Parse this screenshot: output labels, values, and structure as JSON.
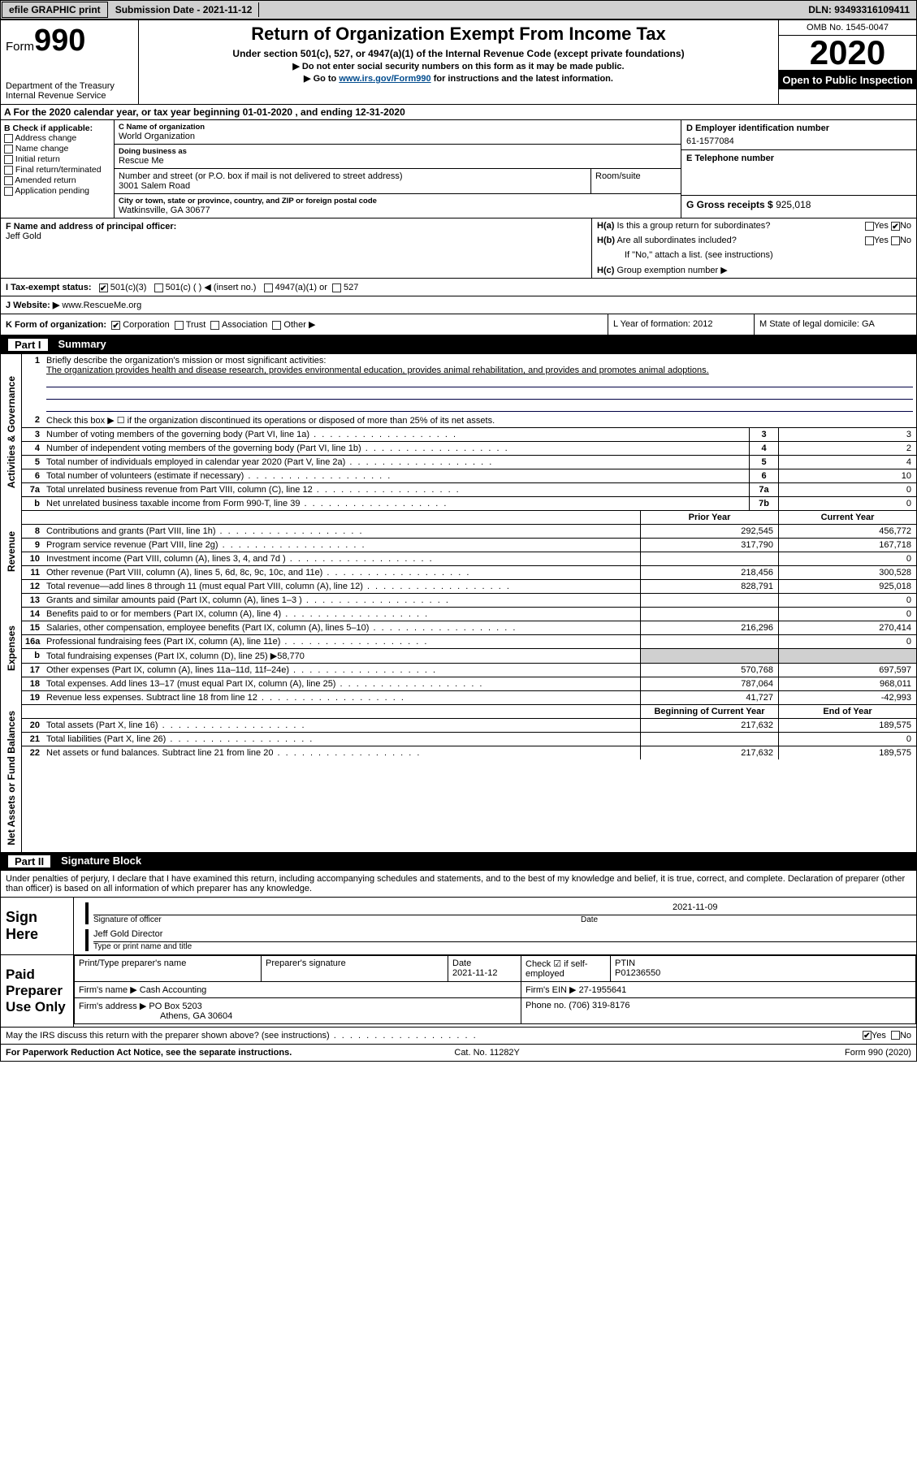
{
  "topbar": {
    "efile_btn": "efile GRAPHIC print",
    "submission_label": "Submission Date - 2021-11-12",
    "dln": "DLN: 93493316109411"
  },
  "header": {
    "form_word": "Form",
    "form_num": "990",
    "dept": "Department of the Treasury\nInternal Revenue Service",
    "title": "Return of Organization Exempt From Income Tax",
    "sub1": "Under section 501(c), 527, or 4947(a)(1) of the Internal Revenue Code (except private foundations)",
    "sub2": "▶ Do not enter social security numbers on this form as it may be made public.",
    "sub3_pre": "▶ Go to ",
    "sub3_link": "www.irs.gov/Form990",
    "sub3_post": " for instructions and the latest information.",
    "omb": "OMB No. 1545-0047",
    "year": "2020",
    "inspection": "Open to Public Inspection"
  },
  "row_a": "A  For the 2020 calendar year, or tax year beginning 01-01-2020    , and ending 12-31-2020",
  "box_b": {
    "title": "B Check if applicable:",
    "items": [
      "Address change",
      "Name change",
      "Initial return",
      "Final return/terminated",
      "Amended return",
      "Application pending"
    ]
  },
  "box_c": {
    "label_name": "C Name of organization",
    "org": "World Organization",
    "dba_label": "Doing business as",
    "dba": "Rescue Me",
    "addr_label": "Number and street (or P.O. box if mail is not delivered to street address)",
    "room_label": "Room/suite",
    "addr": "3001 Salem Road",
    "city_label": "City or town, state or province, country, and ZIP or foreign postal code",
    "city": "Watkinsville, GA  30677"
  },
  "box_d": {
    "label": "D Employer identification number",
    "val": "61-1577084"
  },
  "box_e": {
    "label": "E Telephone number",
    "val": ""
  },
  "box_g": {
    "label": "G Gross receipts $",
    "val": "925,018"
  },
  "box_f": {
    "label": "F  Name and address of principal officer:",
    "val": "Jeff Gold"
  },
  "box_h": {
    "a": "Is this a group return for subordinates?",
    "b": "Are all subordinates included?",
    "note": "If \"No,\" attach a list. (see instructions)",
    "c": "Group exemption number ▶",
    "ha_pre": "H(a)",
    "hb_pre": "H(b)",
    "hc_pre": "H(c)"
  },
  "row_i": {
    "label": "I    Tax-exempt status:",
    "opts": [
      "501(c)(3)",
      "501(c) (  ) ◀ (insert no.)",
      "4947(a)(1) or",
      "527"
    ]
  },
  "row_j": {
    "label": "J   Website: ▶",
    "val": "  www.RescueMe.org"
  },
  "row_k": {
    "label": "K Form of organization:",
    "opts": [
      "Corporation",
      "Trust",
      "Association",
      "Other ▶"
    ]
  },
  "row_l": {
    "label": "L Year of formation: 2012"
  },
  "row_m": {
    "label": "M State of legal domicile: GA"
  },
  "part1": {
    "num": "Part I",
    "title": "Summary"
  },
  "vlabels": {
    "ag": "Activities & Governance",
    "rev": "Revenue",
    "exp": "Expenses",
    "na": "Net Assets or Fund Balances"
  },
  "lines_ag": {
    "l1": {
      "n": "1",
      "t": "Briefly describe the organization's mission or most significant activities:"
    },
    "l1_desc": "The organization provides health and disease research, provides environmental education, provides animal rehabilitation, and provides and promotes animal adoptions.",
    "l2": {
      "n": "2",
      "t": "Check this box ▶ ☐  if the organization discontinued its operations or disposed of more than 25% of its net assets."
    },
    "rows": [
      {
        "n": "3",
        "t": "Number of voting members of the governing body (Part VI, line 1a)",
        "box": "3",
        "v": "3"
      },
      {
        "n": "4",
        "t": "Number of independent voting members of the governing body (Part VI, line 1b)",
        "box": "4",
        "v": "2"
      },
      {
        "n": "5",
        "t": "Total number of individuals employed in calendar year 2020 (Part V, line 2a)",
        "box": "5",
        "v": "4"
      },
      {
        "n": "6",
        "t": "Total number of volunteers (estimate if necessary)",
        "box": "6",
        "v": "10"
      },
      {
        "n": "7a",
        "t": "Total unrelated business revenue from Part VIII, column (C), line 12",
        "box": "7a",
        "v": "0"
      },
      {
        "n": "b",
        "t": "Net unrelated business taxable income from Form 990-T, line 39",
        "box": "7b",
        "v": "0"
      }
    ]
  },
  "col_hdrs": {
    "py": "Prior Year",
    "cy": "Current Year"
  },
  "lines_rev": [
    {
      "n": "8",
      "t": "Contributions and grants (Part VIII, line 1h)",
      "py": "292,545",
      "cy": "456,772"
    },
    {
      "n": "9",
      "t": "Program service revenue (Part VIII, line 2g)",
      "py": "317,790",
      "cy": "167,718"
    },
    {
      "n": "10",
      "t": "Investment income (Part VIII, column (A), lines 3, 4, and 7d )",
      "py": "",
      "cy": "0"
    },
    {
      "n": "11",
      "t": "Other revenue (Part VIII, column (A), lines 5, 6d, 8c, 9c, 10c, and 11e)",
      "py": "218,456",
      "cy": "300,528"
    },
    {
      "n": "12",
      "t": "Total revenue—add lines 8 through 11 (must equal Part VIII, column (A), line 12)",
      "py": "828,791",
      "cy": "925,018"
    }
  ],
  "lines_exp": [
    {
      "n": "13",
      "t": "Grants and similar amounts paid (Part IX, column (A), lines 1–3 )",
      "py": "",
      "cy": "0"
    },
    {
      "n": "14",
      "t": "Benefits paid to or for members (Part IX, column (A), line 4)",
      "py": "",
      "cy": "0"
    },
    {
      "n": "15",
      "t": "Salaries, other compensation, employee benefits (Part IX, column (A), lines 5–10)",
      "py": "216,296",
      "cy": "270,414"
    },
    {
      "n": "16a",
      "t": "Professional fundraising fees (Part IX, column (A), line 11e)",
      "py": "",
      "cy": "0"
    },
    {
      "n": "b",
      "t": "Total fundraising expenses (Part IX, column (D), line 25) ▶58,770",
      "shade": true
    },
    {
      "n": "17",
      "t": "Other expenses (Part IX, column (A), lines 11a–11d, 11f–24e)",
      "py": "570,768",
      "cy": "697,597"
    },
    {
      "n": "18",
      "t": "Total expenses. Add lines 13–17 (must equal Part IX, column (A), line 25)",
      "py": "787,064",
      "cy": "968,011"
    },
    {
      "n": "19",
      "t": "Revenue less expenses. Subtract line 18 from line 12",
      "py": "41,727",
      "cy": "-42,993"
    }
  ],
  "col_hdrs2": {
    "py": "Beginning of Current Year",
    "cy": "End of Year"
  },
  "lines_na": [
    {
      "n": "20",
      "t": "Total assets (Part X, line 16)",
      "py": "217,632",
      "cy": "189,575"
    },
    {
      "n": "21",
      "t": "Total liabilities (Part X, line 26)",
      "py": "",
      "cy": "0"
    },
    {
      "n": "22",
      "t": "Net assets or fund balances. Subtract line 21 from line 20",
      "py": "217,632",
      "cy": "189,575"
    }
  ],
  "part2": {
    "num": "Part II",
    "title": "Signature Block"
  },
  "sig_decl": "Under penalties of perjury, I declare that I have examined this return, including accompanying schedules and statements, and to the best of my knowledge and belief, it is true, correct, and complete. Declaration of preparer (other than officer) is based on all information of which preparer has any knowledge.",
  "sign_here": "Sign Here",
  "sig": {
    "date": "2021-11-09",
    "sig_lab": "Signature of officer",
    "date_lab": "Date",
    "name": "Jeff Gold  Director",
    "name_lab": "Type or print name and title"
  },
  "paid": {
    "title": "Paid Preparer Use Only",
    "h1": "Print/Type preparer's name",
    "h2": "Preparer's signature",
    "h3": "Date",
    "h3v": "2021-11-12",
    "h4": "Check ☑ if self-employed",
    "h5": "PTIN",
    "h5v": "P01236550",
    "firm_lab": "Firm's name   ▶",
    "firm": "Cash Accounting",
    "ein_lab": "Firm's EIN ▶",
    "ein": "27-1955641",
    "addr_lab": "Firm's address ▶",
    "addr1": "PO Box 5203",
    "addr2": "Athens, GA  30604",
    "ph_lab": "Phone no.",
    "ph": "(706) 319-8176"
  },
  "discuss": "May the IRS discuss this return with the preparer shown above? (see instructions)",
  "footer": {
    "l": "For Paperwork Reduction Act Notice, see the separate instructions.",
    "c": "Cat. No. 11282Y",
    "r": "Form 990 (2020)"
  }
}
